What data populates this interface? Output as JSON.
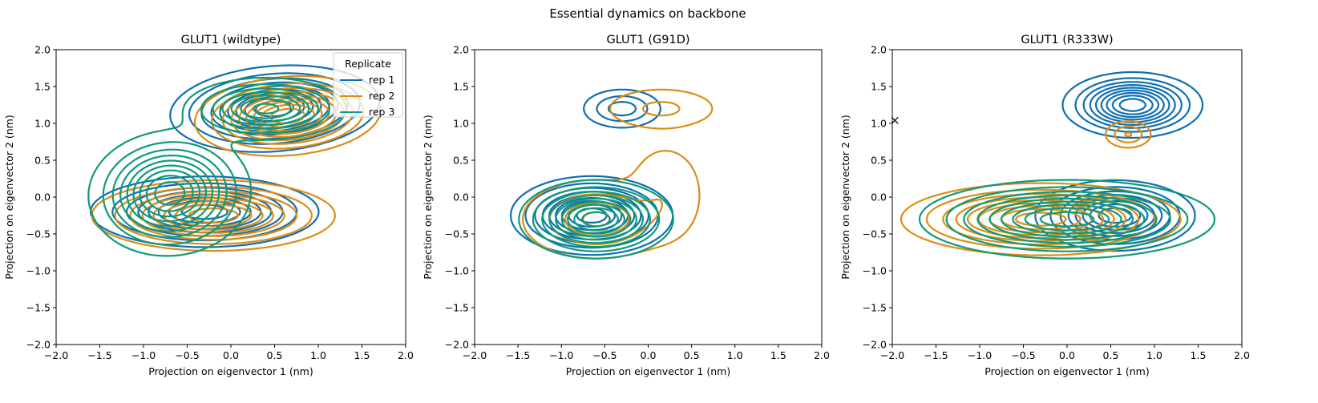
{
  "figure": {
    "suptitle": "Essential dynamics on backbone"
  },
  "colors": {
    "rep 1": "#0f6fb0",
    "rep 2": "#de8c14",
    "rep 3": "#0f9a78"
  },
  "chart_data": [
    {
      "type": "contour",
      "title": "GLUT1 (wildtype)",
      "xlabel": "Projection on eigenvector 1 (nm)",
      "ylabel": "Projection on eigenvector 2 (nm)",
      "xlim": [
        -2,
        2
      ],
      "ylim": [
        -2,
        2
      ],
      "xticks": [
        "−2.0",
        "−1.5",
        "−1.0",
        "−0.5",
        "0.0",
        "0.5",
        "1.0",
        "1.5",
        "2.0"
      ],
      "yticks": [
        "−2.0",
        "−1.5",
        "−1.0",
        "−0.5",
        "0.0",
        "0.5",
        "1.0",
        "1.5",
        "2.0"
      ],
      "grid": false,
      "legend": {
        "title": "Replicate",
        "entries": [
          "rep 1",
          "rep 2",
          "rep 3"
        ],
        "placement": "top-right"
      },
      "series": [
        {
          "name": "rep 1",
          "levels": 9,
          "modes": [
            {
              "cx": 0.5,
              "cy": 1.2,
              "sx": 1.35,
              "sy": 0.65,
              "rot": 0.1,
              "weight": 1.0
            },
            {
              "cx": -0.3,
              "cy": -0.2,
              "sx": 1.5,
              "sy": 0.55,
              "rot": 0.0,
              "weight": 0.9
            }
          ]
        },
        {
          "name": "rep 2",
          "levels": 9,
          "modes": [
            {
              "cx": 0.65,
              "cy": 1.1,
              "sx": 1.2,
              "sy": 0.6,
              "rot": 0.1,
              "weight": 1.0
            },
            {
              "cx": -0.2,
              "cy": -0.25,
              "sx": 1.6,
              "sy": 0.55,
              "rot": 0.0,
              "weight": 0.9
            }
          ]
        },
        {
          "name": "rep 3",
          "levels": 9,
          "modes": [
            {
              "cx": -0.7,
              "cy": 0.05,
              "sx": 1.05,
              "sy": 0.95,
              "rot": 0.2,
              "weight": 1.0
            },
            {
              "cx": 0.4,
              "cy": 1.2,
              "sx": 1.1,
              "sy": 0.5,
              "rot": 0.0,
              "weight": 0.75
            }
          ]
        }
      ]
    },
    {
      "type": "contour",
      "title": "GLUT1 (G91D)",
      "xlabel": "Projection on eigenvector 1 (nm)",
      "ylabel": "Projection on eigenvector 2 (nm)",
      "xlim": [
        -2,
        2
      ],
      "ylim": [
        -2,
        2
      ],
      "xticks": [
        "−2.0",
        "−1.5",
        "−1.0",
        "−0.5",
        "0.0",
        "0.5",
        "1.0",
        "1.5",
        "2.0"
      ],
      "yticks": [
        "−2.0",
        "−1.5",
        "−1.0",
        "−0.5",
        "0.0",
        "0.5",
        "1.0",
        "1.5",
        "2.0"
      ],
      "grid": false,
      "series": [
        {
          "name": "rep 1",
          "levels": 9,
          "modes": [
            {
              "cx": -0.65,
              "cy": -0.25,
              "sx": 1.05,
              "sy": 0.6,
              "rot": 0.0,
              "weight": 1.0
            },
            {
              "cx": -0.3,
              "cy": 1.2,
              "sx": 0.65,
              "sy": 0.38,
              "rot": 0.0,
              "weight": 0.35
            }
          ]
        },
        {
          "name": "rep 2",
          "levels": 4,
          "modes": [
            {
              "cx": -0.6,
              "cy": -0.3,
              "sx": 0.95,
              "sy": 0.6,
              "rot": 0.0,
              "weight": 1.0
            },
            {
              "cx": 0.15,
              "cy": 1.2,
              "sx": 0.8,
              "sy": 0.35,
              "rot": 0.0,
              "weight": 0.45
            },
            {
              "cx": 0.2,
              "cy": 0.05,
              "sx": 0.6,
              "sy": 0.9,
              "rot": 0.0,
              "weight": 0.3
            }
          ]
        },
        {
          "name": "rep 3",
          "levels": 9,
          "modes": [
            {
              "cx": -0.6,
              "cy": -0.3,
              "sx": 1.0,
              "sy": 0.6,
              "rot": 0.0,
              "weight": 1.0
            }
          ]
        }
      ]
    },
    {
      "type": "contour",
      "title": "GLUT1 (R333W)",
      "xlabel": "Projection on eigenvector 1 (nm)",
      "ylabel": "Projection on eigenvector 2 (nm)",
      "xlim": [
        -2,
        2
      ],
      "ylim": [
        -2,
        2
      ],
      "xticks": [
        "−2.0",
        "−1.5",
        "−1.0",
        "−0.5",
        "0.0",
        "0.5",
        "1.0",
        "1.5",
        "2.0"
      ],
      "yticks": [
        "−2.0",
        "−1.5",
        "−1.0",
        "−0.5",
        "0.0",
        "0.5",
        "1.0",
        "1.5",
        "2.0"
      ],
      "grid": false,
      "marker": {
        "x": -1.97,
        "y": 1.04,
        "symbol": "x"
      },
      "series": [
        {
          "name": "rep 1",
          "levels": 9,
          "modes": [
            {
              "cx": 0.75,
              "cy": 1.25,
              "sx": 0.9,
              "sy": 0.5,
              "rot": 0.0,
              "weight": 1.0
            },
            {
              "cx": 0.55,
              "cy": -0.25,
              "sx": 1.05,
              "sy": 0.55,
              "rot": 0.0,
              "weight": 0.9
            }
          ]
        },
        {
          "name": "rep 2",
          "levels": 9,
          "modes": [
            {
              "cx": -0.3,
              "cy": -0.3,
              "sx": 1.8,
              "sy": 0.55,
              "rot": 0.0,
              "weight": 1.0
            },
            {
              "cx": 0.7,
              "cy": 0.85,
              "sx": 0.4,
              "sy": 0.28,
              "rot": 0.0,
              "weight": 0.3
            }
          ]
        },
        {
          "name": "rep 3",
          "levels": 9,
          "modes": [
            {
              "cx": 0.0,
              "cy": -0.3,
              "sx": 1.9,
              "sy": 0.6,
              "rot": 0.0,
              "weight": 1.0
            }
          ]
        }
      ]
    }
  ]
}
